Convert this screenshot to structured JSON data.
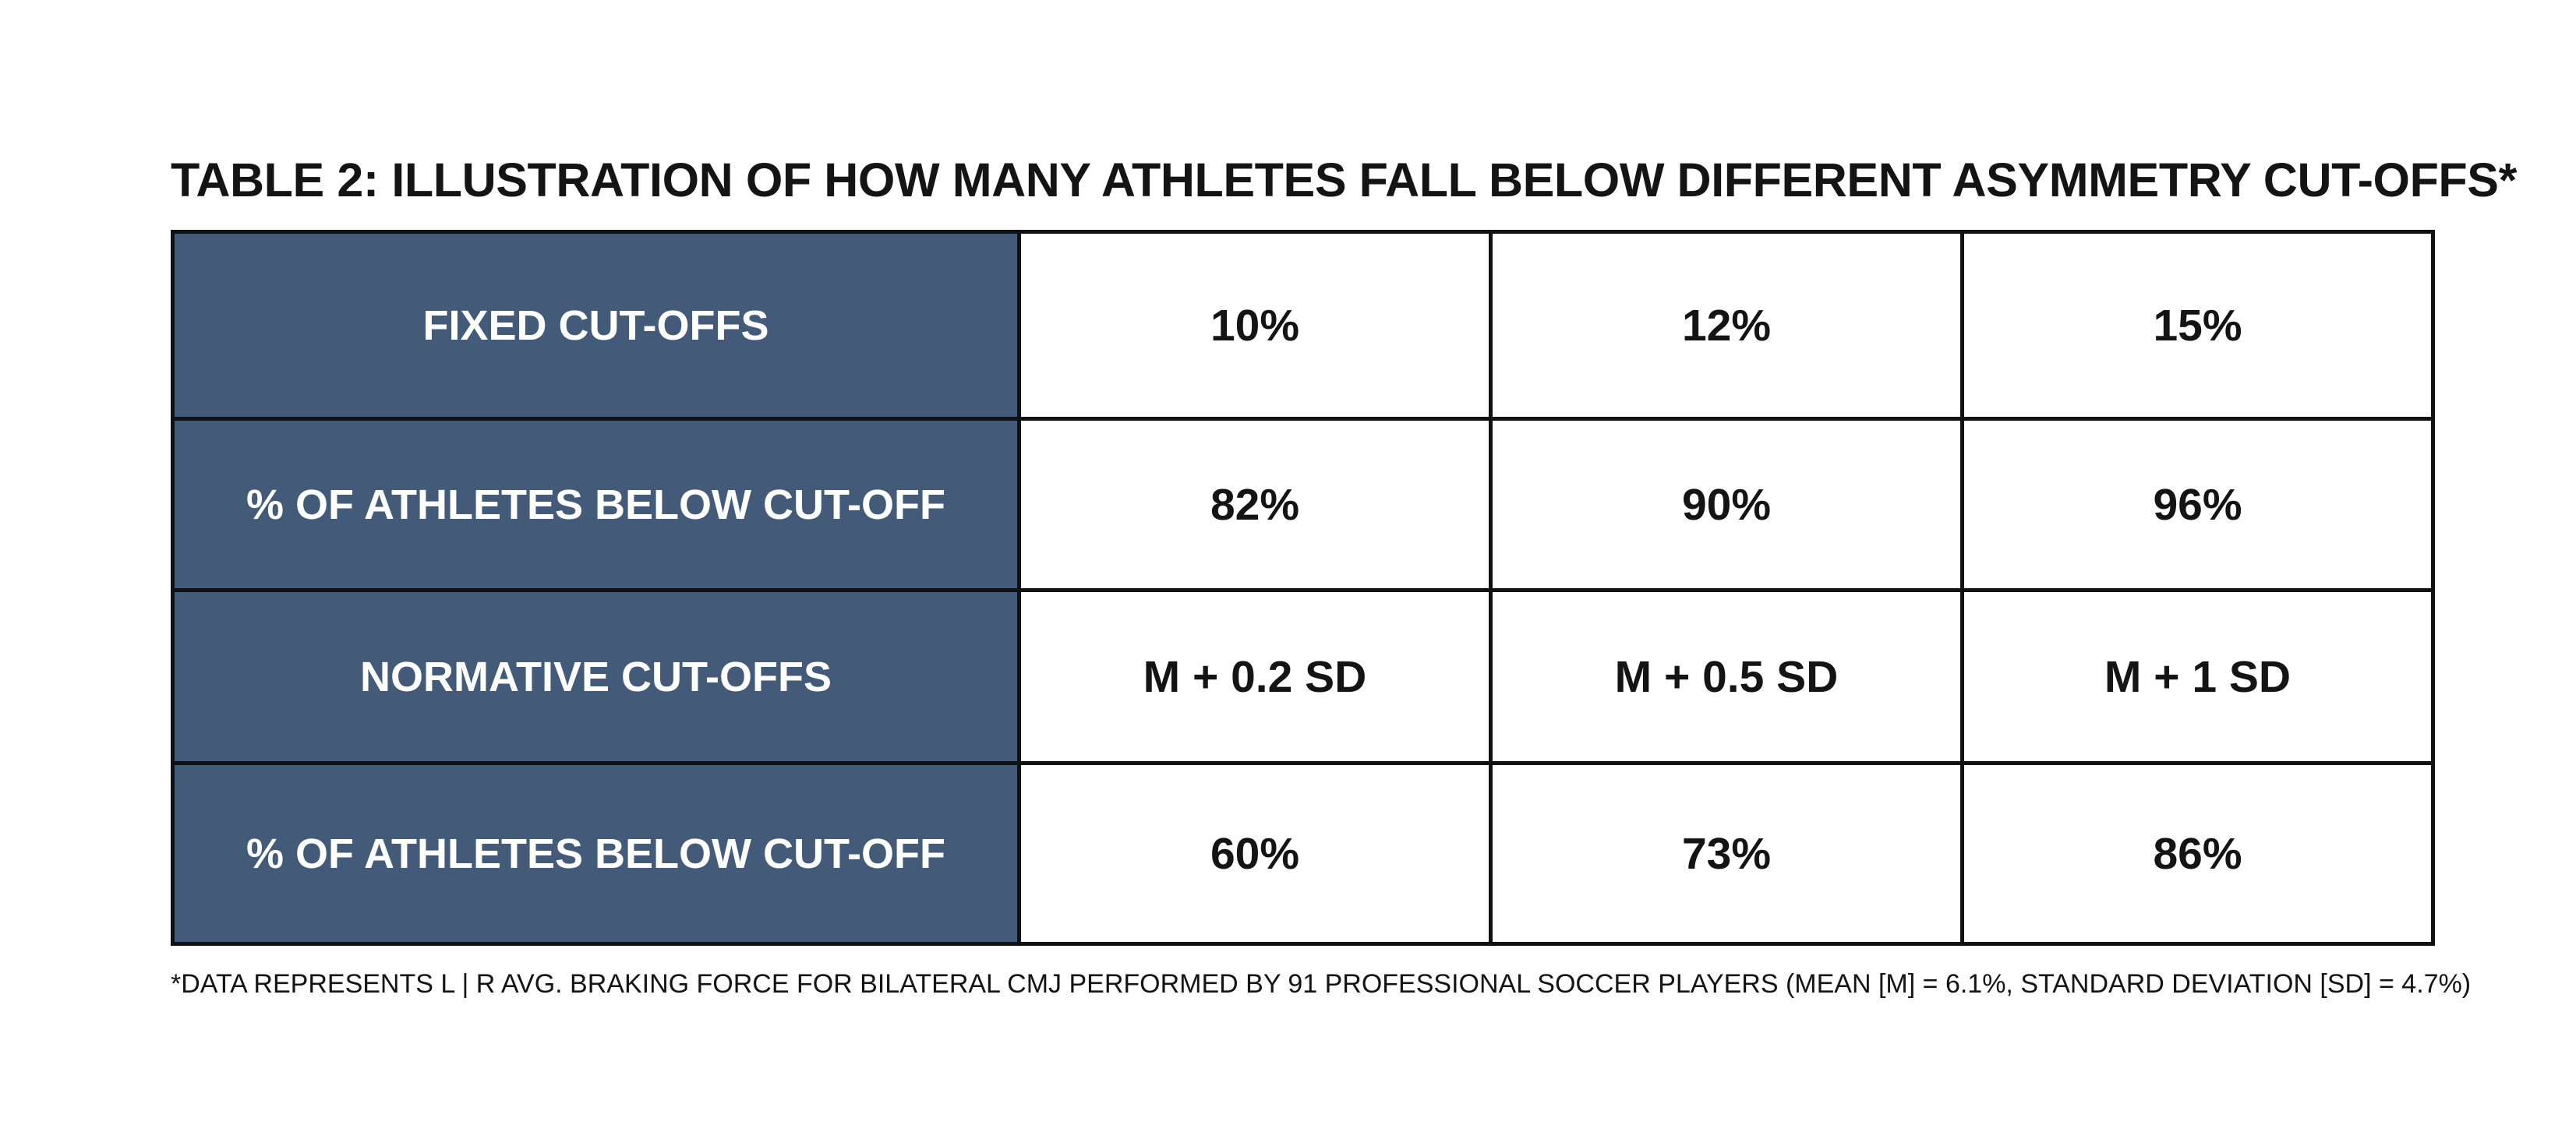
{
  "title": "TABLE 2: ILLUSTRATION OF HOW MANY ATHLETES FALL BELOW DIFFERENT ASYMMETRY CUT-OFFS*",
  "table": {
    "rows": [
      {
        "header": "FIXED CUT-OFFS",
        "cells": [
          "10%",
          "12%",
          "15%"
        ]
      },
      {
        "header": "% OF ATHLETES BELOW CUT-OFF",
        "cells": [
          "82%",
          "90%",
          "96%"
        ]
      },
      {
        "header": "NORMATIVE CUT-OFFS",
        "cells": [
          "M + 0.2 SD",
          "M + 0.5 SD",
          "M + 1 SD"
        ]
      },
      {
        "header": "% OF ATHLETES BELOW CUT-OFF",
        "cells": [
          "60%",
          "73%",
          "86%"
        ]
      }
    ]
  },
  "footnote": "*DATA REPRESENTS L | R AVG. BRAKING FORCE FOR BILATERAL CMJ PERFORMED BY 91 PROFESSIONAL SOCCER PLAYERS (MEAN [M] = 6.1%, STANDARD DEVIATION [SD] = 4.7%)",
  "colors": {
    "header_fill": "#435b79",
    "header_text": "#ffffff",
    "border": "#111111",
    "text": "#141414"
  }
}
